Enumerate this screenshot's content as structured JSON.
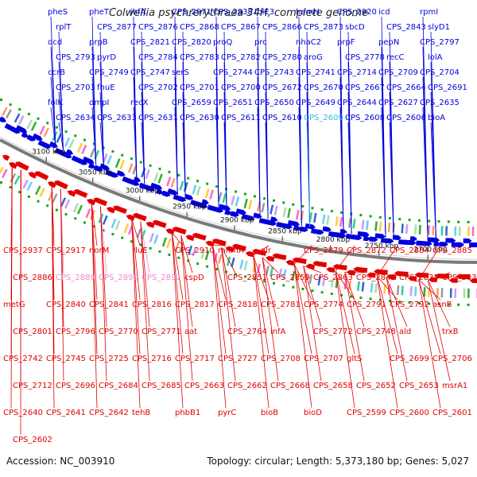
{
  "title": "Colwellia psychrerythraea 34H, complete genome",
  "footer": {
    "accession": "Accession: NC_003910",
    "topology": "Topology: circular; Length: 5,373,180 bp; Genes: 5,027"
  },
  "ticks": [
    "3100 kbp",
    "3050 kbp",
    "3000 kbp",
    "2950 kbp",
    "2900 kbp",
    "2850 kbp",
    "2800 kbp",
    "2750 kbp",
    "2700 kbp"
  ],
  "colors": {
    "forward": "#0000dd",
    "reverse": "#e00000",
    "track": "#888888",
    "green": "#11aa11",
    "highlight_blue": "#33bbdd",
    "highlight_pink": "#ee88cc"
  },
  "top_labels": [
    "pheS",
    "pheT",
    "ihfA",
    "CPS_2971",
    "CPS_2938",
    "folE3",
    "hemH",
    "CPS_2920",
    "icd",
    "rpmI",
    "rplT",
    "CPS_2877",
    "CPS_2876",
    "CPS_2868",
    "CPS_2867",
    "CPS_2866",
    "CPS_2873",
    "sbcD",
    "CPS_2843",
    "slyD1",
    "dcd",
    "prpB",
    "CPS_2821",
    "CPS_2820",
    "proQ",
    "prc",
    "nhaC2",
    "prpF",
    "pepN",
    "CPS_2797",
    "CPS_2793",
    "pyrD",
    "CPS_2784",
    "CPS_2783",
    "CPS_2782",
    "CPS_2780",
    "aroG",
    "CPS_2778",
    "recC",
    "lolA",
    "ccrB",
    "CPS_2749",
    "CPS_2747",
    "serS",
    "CPS_2744",
    "CPS_2743",
    "CPS_2741",
    "CPS_2714",
    "CPS_2709",
    "CPS_2704",
    "CPS_2703",
    "fhuE",
    "CPS_2702",
    "CPS_2701",
    "CPS_2700",
    "CPS_2672",
    "CPS_2670",
    "CPS_2667",
    "CPS_2664",
    "CPS_2691",
    "folK",
    "dmpI",
    "recX",
    "CPS_2659",
    "CPS_2651",
    "CPS_2650",
    "CPS_2649",
    "CPS_2644",
    "CPS_2627",
    "CPS_2635",
    "CPS_2634",
    "CPS_2633",
    "CPS_2631",
    "CPS_2630",
    "CPS_2611",
    "CPS_2610",
    "CPS_2609",
    "CPS_2608",
    "CPS_2606",
    "bioA"
  ],
  "bottom_labels": [
    "CPS_2937",
    "CPS_2917",
    "norM",
    "rluE",
    "CPS_2910",
    "mnmA",
    "alr",
    "CPS_2879",
    "CPS_2872",
    "CPS_2884",
    "CPS_2885",
    "CPS_2886",
    "CPS_2889",
    "CPS_2890",
    "CPS_2891",
    "cspD",
    "CPS_2851",
    "CPS_2859",
    "CPS_2863",
    "CPS_2842",
    "CPS_2835",
    "CPS_2836",
    "metG",
    "CPS_2840",
    "CPS_2841",
    "CPS_2816",
    "CPS_2817",
    "CPS_2818",
    "CPS_2781",
    "CPS_2774",
    "CPS_2791",
    "CPS_2792",
    "asnB",
    "CPS_2801",
    "CPS_2796",
    "CPS_2770",
    "CPS_2771",
    "aat",
    "CPS_2764",
    "infA",
    "CPS_2772",
    "CPS_2748",
    "ald",
    "trxB",
    "CPS_2742",
    "CPS_2745",
    "CPS_2725",
    "CPS_2716",
    "CPS_2717",
    "CPS_2727",
    "CPS_2708",
    "CPS_2707",
    "gltS",
    "CPS_2699",
    "CPS_2706",
    "CPS_2712",
    "CPS_2696",
    "CPS_2684",
    "CPS_2685",
    "CPS_2663",
    "CPS_2662",
    "CPS_2668",
    "CPS_2658",
    "CPS_2652",
    "CPS_2653",
    "msrA1",
    "CPS_2640",
    "CPS_2641",
    "CPS_2642",
    "tehB",
    "phbB1",
    "pyrC",
    "bioB",
    "bioD",
    "CPS_2599",
    "CPS_2600",
    "CPS_2601",
    "CPS_2602"
  ]
}
